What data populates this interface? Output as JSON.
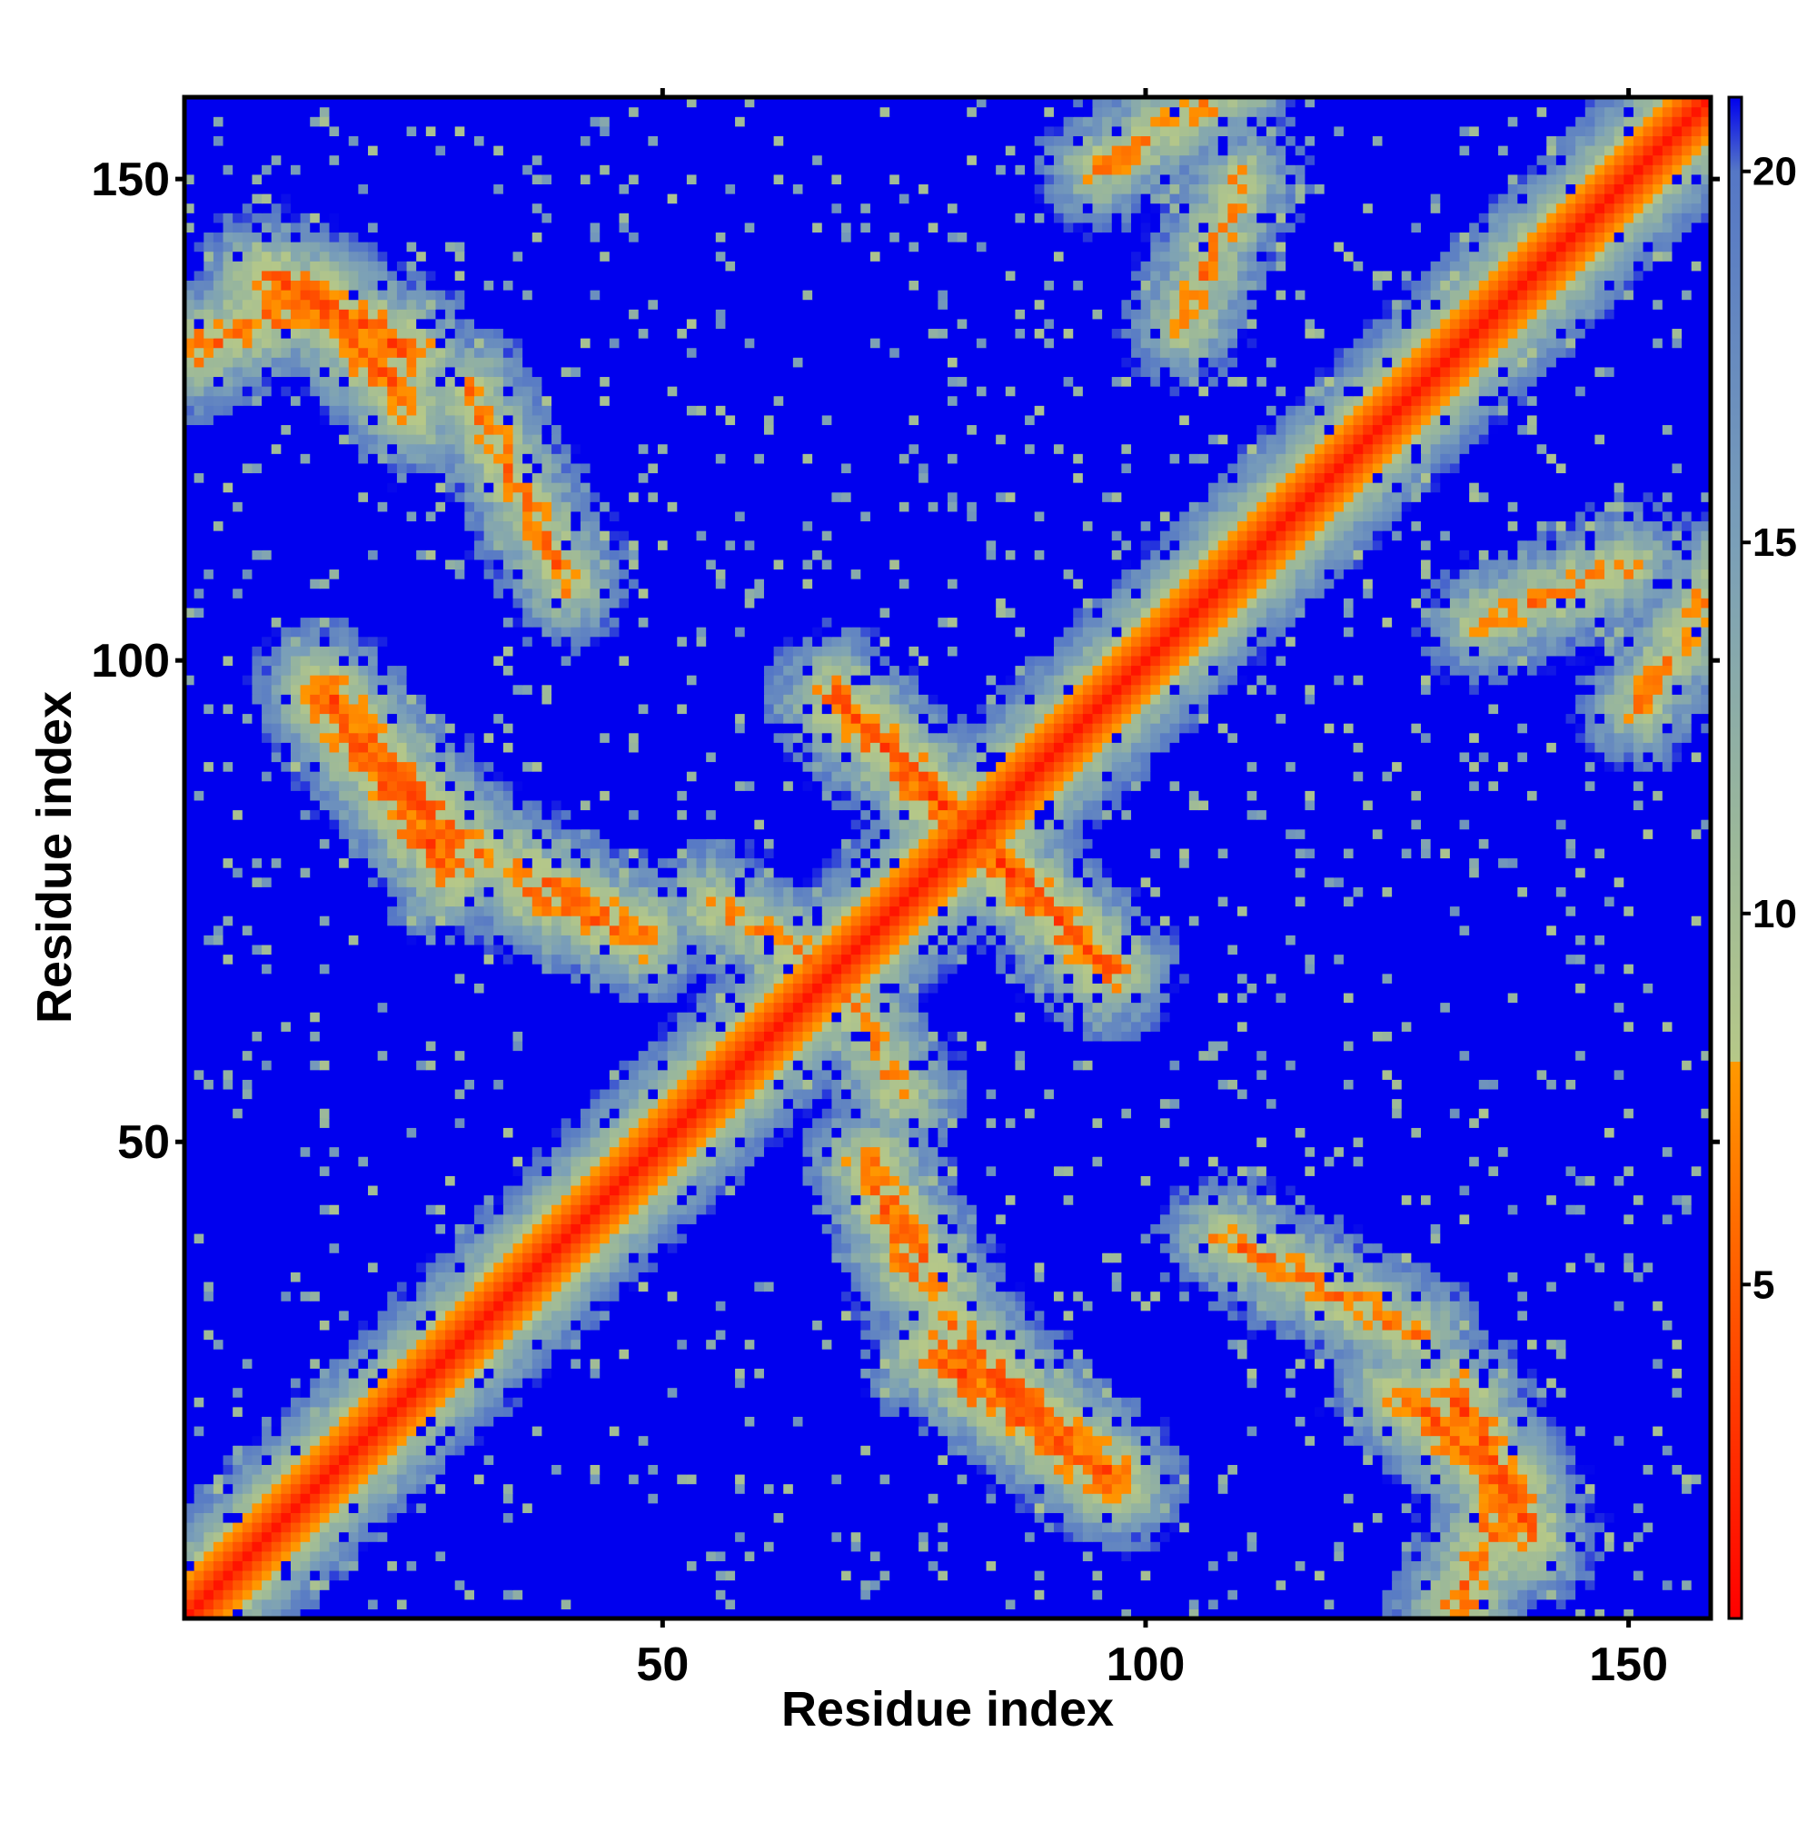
{
  "chart_data": {
    "type": "heatmap",
    "title": "",
    "xlabel": "Residue index",
    "ylabel": "Residue index",
    "n_residues": 158,
    "xlim": [
      0.5,
      158.5
    ],
    "ylim": [
      0.5,
      158.5
    ],
    "x_ticks": [
      50,
      100,
      150
    ],
    "x_tick_labels": [
      "50",
      "100",
      "150"
    ],
    "y_ticks": [
      50,
      100,
      150
    ],
    "y_tick_labels": [
      "50",
      "100",
      "150"
    ],
    "colorbar": {
      "range": [
        0.5,
        21.0
      ],
      "ticks": [
        5,
        10,
        15,
        20
      ],
      "tick_labels": [
        "5",
        "10",
        "15",
        "20"
      ],
      "stops": [
        {
          "value": 0.5,
          "color": "#ff0000"
        },
        {
          "value": 8.0,
          "color": "#ff9900"
        },
        {
          "value": 8.0,
          "color": "#b6c888"
        },
        {
          "value": 11.0,
          "color": "#9bb89a"
        },
        {
          "value": 15.0,
          "color": "#7a9fb8"
        },
        {
          "value": 20.0,
          "color": "#5577c6"
        },
        {
          "value": 21.0,
          "color": "#0000ee"
        }
      ]
    },
    "saturation_color": "#0000ee",
    "saturation_value": 21,
    "contact_bands": [
      {
        "kind": "diagonal",
        "a": [
          1,
          1
        ],
        "b": [
          158,
          158
        ],
        "strength": 1.0
      },
      {
        "kind": "anti",
        "a": [
          68,
          96
        ],
        "b": [
          94,
          70
        ],
        "strength": 0.9
      },
      {
        "kind": "anti",
        "a": [
          15,
          97
        ],
        "b": [
          28,
          82
        ],
        "strength": 0.85
      },
      {
        "kind": "parallel",
        "a": [
          28,
          82
        ],
        "b": [
          48,
          72
        ],
        "strength": 0.55
      },
      {
        "kind": "anti",
        "a": [
          1,
          132
        ],
        "b": [
          14,
          138
        ],
        "strength": 0.75
      },
      {
        "kind": "anti",
        "a": [
          14,
          138
        ],
        "b": [
          24,
          126
        ],
        "strength": 0.8
      },
      {
        "kind": "anti",
        "a": [
          78,
          28
        ],
        "b": [
          96,
          15
        ],
        "strength": 0.85
      },
      {
        "kind": "anti",
        "a": [
          132,
          24
        ],
        "b": [
          140,
          9
        ],
        "strength": 0.85
      },
      {
        "kind": "parallel",
        "a": [
          108,
          40
        ],
        "b": [
          128,
          30
        ],
        "strength": 0.55
      },
      {
        "kind": "parallel",
        "a": [
          95,
          151
        ],
        "b": [
          110,
          160
        ],
        "strength": 0.45
      },
      {
        "kind": "parallel",
        "a": [
          135,
          104
        ],
        "b": [
          150,
          110
        ],
        "strength": 0.45
      },
      {
        "kind": "parallel",
        "a": [
          55,
          75
        ],
        "b": [
          70,
          67
        ],
        "strength": 0.5
      },
      {
        "kind": "parallel",
        "a": [
          71,
          48
        ],
        "b": [
          76,
          36
        ],
        "strength": 0.6
      }
    ]
  }
}
